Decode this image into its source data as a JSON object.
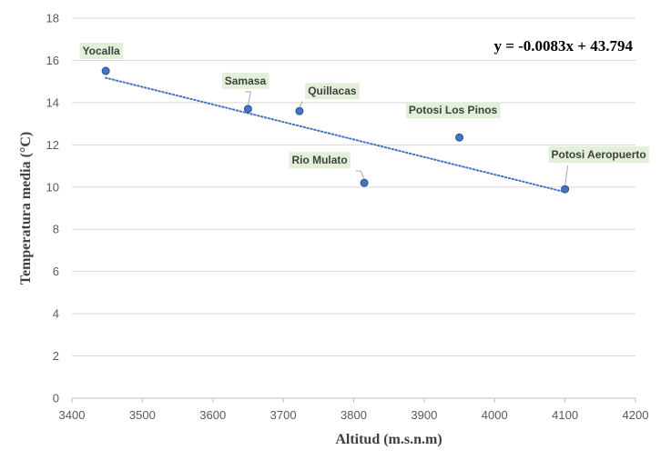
{
  "chart_data": {
    "type": "scatter",
    "xlabel": "Altitud (m.s.n.m)",
    "ylabel": "Temperatura media (°C)",
    "xlim": [
      3400,
      4200
    ],
    "ylim": [
      0,
      18
    ],
    "x_ticks": [
      3400,
      3500,
      3600,
      3700,
      3800,
      3900,
      4000,
      4100,
      4200
    ],
    "y_ticks": [
      0,
      2,
      4,
      6,
      8,
      10,
      12,
      14,
      16,
      18
    ],
    "grid": "horizontal",
    "points": [
      {
        "label": "Yocalla",
        "x": 3448,
        "y": 15.5
      },
      {
        "label": "Samasa",
        "x": 3650,
        "y": 13.7
      },
      {
        "label": "Quillacas",
        "x": 3723,
        "y": 13.6
      },
      {
        "label": "Potosi Los Pinos",
        "x": 3950,
        "y": 12.35
      },
      {
        "label": "Rio Mulato",
        "x": 3815,
        "y": 10.2
      },
      {
        "label": "Potosi Aeropuerto",
        "x": 4100,
        "y": 9.9
      }
    ],
    "trendline": {
      "type": "linear",
      "slope": -0.0083,
      "intercept": 43.794,
      "x_range": [
        3448,
        4100
      ],
      "equation": "y = -0.0083x + 43.794",
      "style": "dotted"
    },
    "colors": {
      "marker": "#4472c4",
      "marker_edge": "#2f528f",
      "trendline": "#4472c4",
      "label_bg": "#e2efd9",
      "grid": "#d9d9d9"
    }
  }
}
